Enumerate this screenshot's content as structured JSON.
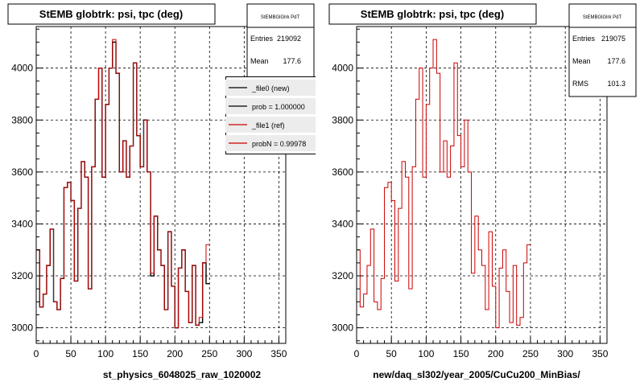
{
  "panels": [
    {
      "title": "StEMB globtrk: psi, tpc (deg)",
      "stats": {
        "name": "StEMBGlGlrk PdT",
        "entries_label": "Entries",
        "entries": "219092",
        "mean_label": "Mean",
        "mean": "177.6"
      },
      "legend": [
        {
          "label": "_file0 (new)",
          "color": "#000000"
        },
        {
          "label": "prob = 1.000000",
          "color": "#000000"
        },
        {
          "label": "_file1 (ref)",
          "color": "#cc0000"
        },
        {
          "label": "probN = 0.99978",
          "color": "#cc0000"
        }
      ],
      "caption": "st_physics_6048025_raw_1020002"
    },
    {
      "title": "StEMB globtrk: psi, tpc (deg)",
      "stats": {
        "name": "StEMBGlGlrk PdT",
        "entries_label": "Entries",
        "entries": "219075",
        "mean_label": "Mean",
        "mean": "177.6",
        "rms_label": "RMS",
        "rms": "101.3"
      },
      "caption": "new/daq_sl302/year_2005/CuCu200_MinBias/"
    }
  ],
  "colors": {
    "new": "#000000",
    "ref": "#cc0000",
    "grid": "#000000"
  },
  "chart_data": [
    {
      "type": "line",
      "title": "StEMB globtrk: psi, tpc (deg)",
      "xlabel": "st_physics_6048025_raw_1020002",
      "ylabel": "",
      "xlim": [
        0,
        360
      ],
      "ylim": [
        2940,
        4160
      ],
      "x_ticks": [
        0,
        50,
        100,
        150,
        200,
        250,
        300,
        350
      ],
      "y_ticks": [
        3000,
        3200,
        3400,
        3600,
        3800,
        4000
      ],
      "grid": true,
      "legend_position": "top-right",
      "bin_width": 5,
      "series": [
        {
          "name": "_file0 (new)",
          "style": "step",
          "values": [
            3300,
            3080,
            3130,
            3240,
            3380,
            3100,
            3070,
            3190,
            3540,
            3560,
            3490,
            3180,
            3460,
            3640,
            3580,
            3150,
            3620,
            3880,
            4000,
            3580,
            3860,
            4000,
            4100,
            3980,
            3600,
            3720,
            3580,
            3700,
            4020,
            3740,
            3620,
            3800,
            3600,
            3200,
            3430,
            3300,
            3240,
            3070,
            3370,
            3160,
            3000,
            3230,
            3300,
            3140,
            3020,
            3240,
            3010,
            3020,
            3250,
            3170
          ]
        },
        {
          "name": "_file1 (ref)",
          "style": "step",
          "values": [
            3300,
            3080,
            3130,
            3240,
            3380,
            3100,
            3070,
            3190,
            3540,
            3560,
            3490,
            3180,
            3460,
            3640,
            3580,
            3150,
            3620,
            3880,
            4000,
            3580,
            3860,
            4000,
            4110,
            3980,
            3600,
            3720,
            3580,
            3700,
            4020,
            3740,
            3620,
            3800,
            3600,
            3210,
            3430,
            3300,
            3240,
            3070,
            3370,
            3160,
            3000,
            3230,
            3300,
            3140,
            3020,
            3240,
            3010,
            3040,
            3250,
            3320
          ]
        }
      ]
    },
    {
      "type": "line",
      "title": "StEMB globtrk: psi, tpc (deg)",
      "xlabel": "new/daq_sl302/year_2005/CuCu200_MinBias/",
      "ylabel": "",
      "xlim": [
        0,
        360
      ],
      "ylim": [
        2940,
        4160
      ],
      "x_ticks": [
        0,
        50,
        100,
        150,
        200,
        250,
        300,
        350
      ],
      "y_ticks": [
        3000,
        3200,
        3400,
        3600,
        3800,
        4000
      ],
      "grid": true,
      "bin_width": 5,
      "series": [
        {
          "name": "",
          "style": "step",
          "values": [
            3300,
            3080,
            3130,
            3240,
            3380,
            3100,
            3070,
            3190,
            3540,
            3560,
            3490,
            3180,
            3460,
            3640,
            3580,
            3150,
            3620,
            3880,
            4000,
            3580,
            3860,
            4000,
            4110,
            3980,
            3600,
            3720,
            3580,
            3700,
            4020,
            3740,
            3620,
            3800,
            3600,
            3210,
            3430,
            3300,
            3240,
            3070,
            3370,
            3160,
            3000,
            3230,
            3300,
            3140,
            3020,
            3240,
            3010,
            3040,
            3250,
            3320
          ]
        }
      ]
    }
  ]
}
